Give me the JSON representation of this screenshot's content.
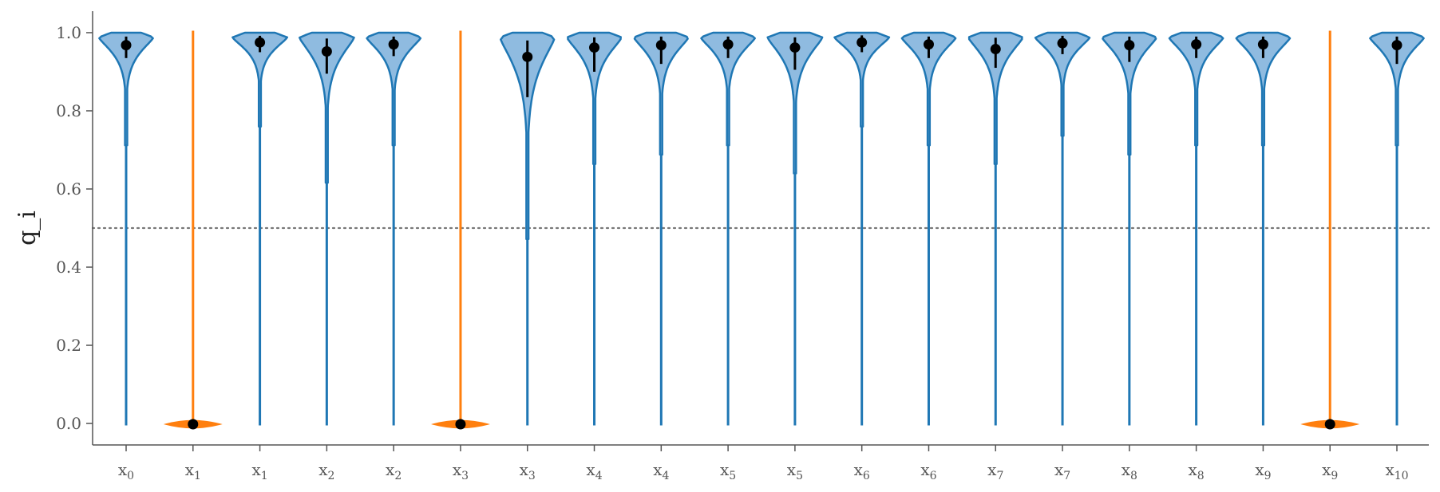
{
  "chart_data": {
    "type": "violin",
    "title": "",
    "xlabel": "",
    "ylabel": "q_i",
    "ylim": [
      -0.055,
      1.055
    ],
    "yticks": [
      0.0,
      0.2,
      0.4,
      0.6,
      0.8,
      1.0
    ],
    "ytick_labels": [
      "0.0",
      "0.2",
      "0.4",
      "0.6",
      "0.8",
      "1.0"
    ],
    "reference_line": {
      "y": 0.5,
      "style": "dotted",
      "color": "#777777"
    },
    "grid": false,
    "legend": "none",
    "colors": {
      "high": "#1f77b4",
      "high_fill": "#8fbbe0",
      "low": "#ff7f0e",
      "marker": "#000000"
    },
    "violins": [
      {
        "label": "x",
        "sub": "0",
        "group": "high",
        "mean": 0.968,
        "err_low": 0.935,
        "err_high": 0.99,
        "min": -0.005,
        "max": 1.0,
        "width": 0.95,
        "taper": 0.12
      },
      {
        "label": "x",
        "sub": "1",
        "group": "low",
        "mean": -0.002,
        "min": -0.002,
        "max": 1.005
      },
      {
        "label": "x",
        "sub": "1",
        "group": "high",
        "mean": 0.975,
        "err_low": 0.95,
        "err_high": 0.992,
        "min": -0.005,
        "max": 1.0,
        "width": 0.95,
        "taper": 0.1
      },
      {
        "label": "x",
        "sub": "2",
        "group": "high",
        "mean": 0.952,
        "err_low": 0.895,
        "err_high": 0.985,
        "min": -0.005,
        "max": 1.0,
        "width": 0.95,
        "taper": 0.16
      },
      {
        "label": "x",
        "sub": "2",
        "group": "high",
        "mean": 0.97,
        "err_low": 0.94,
        "err_high": 0.99,
        "min": -0.005,
        "max": 1.0,
        "width": 0.95,
        "taper": 0.12
      },
      {
        "label": "x",
        "sub": "3",
        "group": "low",
        "mean": -0.002,
        "min": -0.002,
        "max": 1.005
      },
      {
        "label": "x",
        "sub": "3",
        "group": "high",
        "mean": 0.938,
        "err_low": 0.835,
        "err_high": 0.98,
        "min": -0.005,
        "max": 1.0,
        "width": 0.95,
        "taper": 0.22
      },
      {
        "label": "x",
        "sub": "4",
        "group": "high",
        "mean": 0.962,
        "err_low": 0.9,
        "err_high": 0.988,
        "min": -0.005,
        "max": 1.0,
        "width": 0.95,
        "taper": 0.14
      },
      {
        "label": "x",
        "sub": "4",
        "group": "high",
        "mean": 0.968,
        "err_low": 0.92,
        "err_high": 0.99,
        "min": -0.005,
        "max": 1.0,
        "width": 0.95,
        "taper": 0.13
      },
      {
        "label": "x",
        "sub": "5",
        "group": "high",
        "mean": 0.97,
        "err_low": 0.935,
        "err_high": 0.99,
        "min": -0.005,
        "max": 1.0,
        "width": 0.95,
        "taper": 0.12
      },
      {
        "label": "x",
        "sub": "5",
        "group": "high",
        "mean": 0.962,
        "err_low": 0.905,
        "err_high": 0.988,
        "min": -0.005,
        "max": 1.0,
        "width": 0.95,
        "taper": 0.15
      },
      {
        "label": "x",
        "sub": "6",
        "group": "high",
        "mean": 0.975,
        "err_low": 0.95,
        "err_high": 0.993,
        "min": -0.005,
        "max": 1.0,
        "width": 0.95,
        "taper": 0.1
      },
      {
        "label": "x",
        "sub": "6",
        "group": "high",
        "mean": 0.97,
        "err_low": 0.935,
        "err_high": 0.99,
        "min": -0.005,
        "max": 1.0,
        "width": 0.95,
        "taper": 0.12
      },
      {
        "label": "x",
        "sub": "7",
        "group": "high",
        "mean": 0.958,
        "err_low": 0.91,
        "err_high": 0.987,
        "min": -0.005,
        "max": 1.0,
        "width": 0.95,
        "taper": 0.14
      },
      {
        "label": "x",
        "sub": "7",
        "group": "high",
        "mean": 0.973,
        "err_low": 0.945,
        "err_high": 0.992,
        "min": -0.005,
        "max": 1.0,
        "width": 0.95,
        "taper": 0.11
      },
      {
        "label": "x",
        "sub": "8",
        "group": "high",
        "mean": 0.968,
        "err_low": 0.925,
        "err_high": 0.99,
        "min": -0.005,
        "max": 1.0,
        "width": 0.95,
        "taper": 0.13
      },
      {
        "label": "x",
        "sub": "8",
        "group": "high",
        "mean": 0.97,
        "err_low": 0.935,
        "err_high": 0.99,
        "min": -0.005,
        "max": 1.0,
        "width": 0.95,
        "taper": 0.12
      },
      {
        "label": "x",
        "sub": "9",
        "group": "high",
        "mean": 0.97,
        "err_low": 0.935,
        "err_high": 0.99,
        "min": -0.005,
        "max": 1.0,
        "width": 0.95,
        "taper": 0.12
      },
      {
        "label": "x",
        "sub": "9",
        "group": "low",
        "mean": -0.002,
        "min": -0.002,
        "max": 1.005
      },
      {
        "label": "x",
        "sub": "10",
        "group": "high",
        "mean": 0.968,
        "err_low": 0.92,
        "err_high": 0.99,
        "min": -0.005,
        "max": 1.0,
        "width": 0.95,
        "taper": 0.12
      }
    ]
  }
}
